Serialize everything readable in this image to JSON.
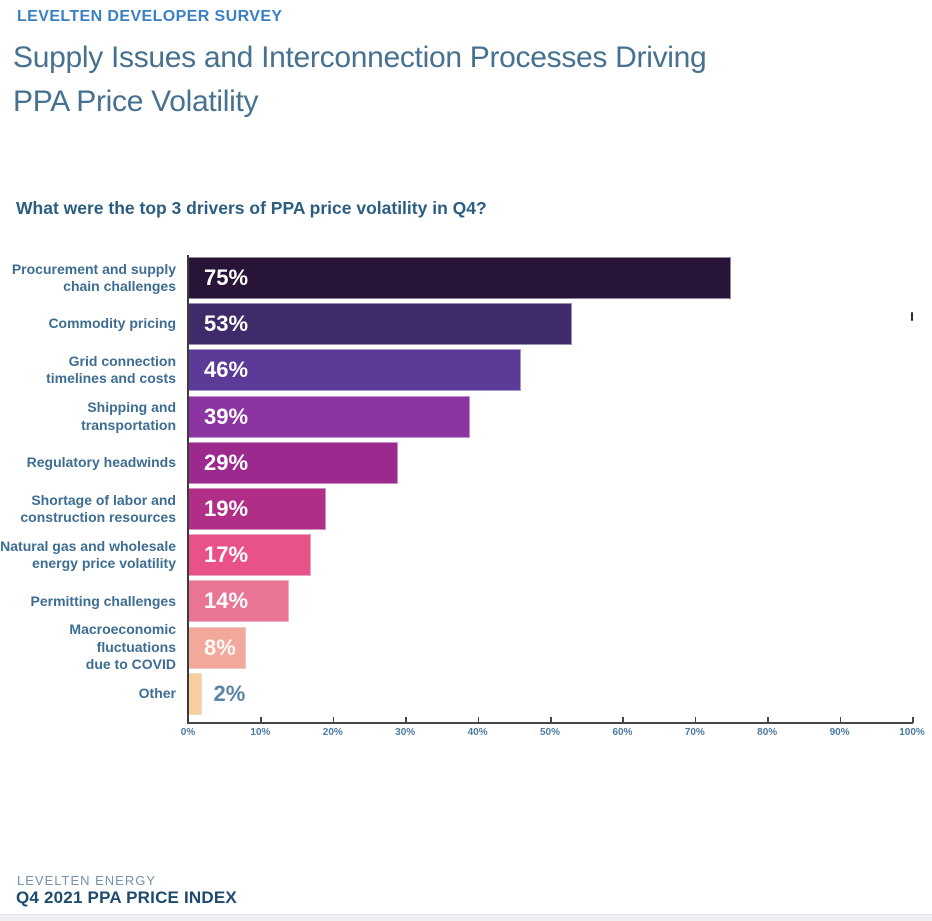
{
  "header": {
    "eyebrow": "LEVELTEN DEVELOPER SURVEY",
    "title": "Supply Issues and Interconnection Processes Driving\nPPA Price Volatility"
  },
  "question": "What were the top 3 drivers of PPA price volatility in Q4?",
  "chart_data": {
    "type": "bar",
    "orientation": "horizontal",
    "title": "What were the top 3 drivers of PPA price volatility in Q4?",
    "categories": [
      "Procurement and supply\nchain challenges",
      "Commodity pricing",
      "Grid connection\ntimelines and costs",
      "Shipping and\ntransportation",
      "Regulatory headwinds",
      "Shortage of labor and\nconstruction resources",
      "Natural gas and wholesale\nenergy price volatility",
      "Permitting challenges",
      "Macroeconomic\nfluctuations\ndue to COVID",
      "Other"
    ],
    "values": [
      75,
      53,
      46,
      39,
      29,
      19,
      17,
      14,
      8,
      2
    ],
    "value_labels": [
      "75%",
      "53%",
      "46%",
      "39%",
      "29%",
      "19%",
      "17%",
      "14%",
      "8%",
      "2%"
    ],
    "bar_colors": [
      "#271437",
      "#402b6a",
      "#5c3a97",
      "#8b34a2",
      "#9b298e",
      "#b02d88",
      "#e95289",
      "#ea7494",
      "#f2a89b",
      "#f7cf9f"
    ],
    "label_placement": [
      "inside",
      "inside",
      "inside",
      "inside",
      "inside",
      "inside",
      "inside",
      "inside",
      "inside-soft",
      "outside"
    ],
    "x_axis": {
      "min": 0,
      "max": 100,
      "tick_labels": [
        "0%",
        "10%",
        "20%",
        "30%",
        "40%",
        "50%",
        "60%",
        "70%",
        "80%",
        "90%",
        "100%"
      ]
    },
    "grid": "off",
    "legend": "none",
    "colors": {
      "axis_line": "#464646",
      "tick_label": "#4d7aa1",
      "category_label": "#3d6d92",
      "value_label_inside": "#ffffff",
      "value_label_outside": "#5b84a4"
    }
  },
  "footer": {
    "brand": "LEVELTEN ENERGY",
    "report": "Q4 2021 PPA PRICE INDEX"
  }
}
